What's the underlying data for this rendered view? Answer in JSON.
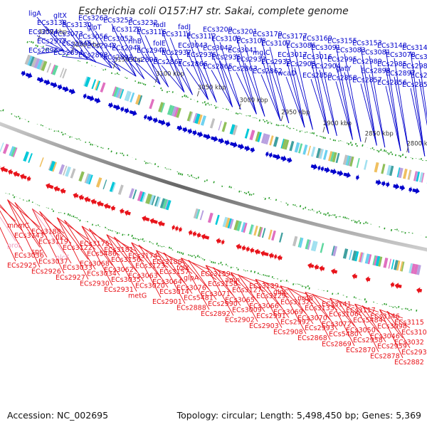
{
  "header": {
    "title": "Escherichia coli O157:H7 str. Sakai, complete genome"
  },
  "footer": {
    "accession": "Accession: NC_002695",
    "summary": "Topology: circular; Length: 5,498,450 bp; Genes: 5,369"
  },
  "colors": {
    "forward": "#0000cc",
    "reverse": "#e8141b",
    "highlight": "#f0a0c0",
    "backbone": "#6e6e6e",
    "gc_tick": "#2a9d2a"
  },
  "scale_ticks": [
    "3250 kbp",
    "3200 kbp",
    "3150 kbp",
    "3100 kbp",
    "3050 kbp",
    "3000 kbp",
    "2950 kbp",
    "2900 kbp",
    "2850 kbp",
    "2800 kbp"
  ],
  "forward_labels": [
    "ligA",
    "gltX",
    "ECs3263",
    "ECs3253",
    "ECs3232",
    "fadI",
    "fadJ",
    "ECs3209",
    "ECs3201",
    "ECs3179",
    "ECs3177",
    "ECs3169",
    "ECs3155",
    "ECs3153",
    "ECs3148",
    "ECs3147",
    "ECs3138",
    "ECs3130",
    "glpT",
    "ECs3120",
    "ECs3116",
    "ECs3114",
    "ECs3112",
    "ECs3109",
    "ECs3108",
    "ECs3107",
    "ECs3086",
    "ECs3091",
    "ECs3083",
    "ECs3081",
    "ECs3078",
    "ECs3075",
    "ECs3074",
    "ECs3073",
    "ECs3056",
    "ECs3053",
    "rihB",
    "folE",
    "ECs3043",
    "ECs3042",
    "ECs3041",
    "mglC",
    "ECs3017",
    "ECs3016",
    "ECs2995",
    "ECs2989",
    "ECs2985",
    "ECs2982",
    "ECs2977",
    "ECs2945",
    "ECs2942",
    "ECs2941",
    "ECs2940",
    "ECs2937",
    "ECs2936",
    "ECs2935",
    "ECs2933",
    "ECs2932",
    "ECs2905",
    "ECs2904",
    "gatY",
    "ECs2898",
    "ECs2897",
    "ECs2896",
    "ECs2895",
    "ECs2894",
    "ECs2893",
    "ECs2891",
    "ECs2890",
    "ECs2867",
    "ECs2866",
    "ECs2865",
    "ECs2863",
    "ECs2862",
    "wcaD",
    "ECs2859",
    "ECs2858",
    "ECs2857",
    "ECs2856",
    "ECs2855"
  ],
  "reverse_labels": [
    "mnmC",
    "ECs3188",
    "flk",
    "ECs3175",
    "ECs3181",
    "ECs3174",
    "ECs3180",
    "folX",
    "ECs3159",
    "amn",
    "ECs3139",
    "glpC",
    "nrdB",
    "ECs3141",
    "ECs3117",
    "ECs3146",
    "ECs3115",
    "ECs3143",
    "ECs3119",
    "ECs3122",
    "ECs5486",
    "ECs3156",
    "ECs3123",
    "ECs3157",
    "glpA",
    "ECs3158",
    "ECs3127",
    "ECs3129",
    "ECs3132",
    "ECs3133",
    "ECs3106",
    "ECs5484",
    "ECs3098",
    "ECs3105",
    "proL",
    "spr",
    "nlcF",
    "ECs3068",
    "ECs3062",
    "ECs3063",
    "ECs3064",
    "ECs3076",
    "ECs3071",
    "ECs3065",
    "ECs3066",
    "ECs3069",
    "ECs3070",
    "ECs3072",
    "ECs3050",
    "ECs3046",
    "ECs3032",
    "ECs3036",
    "ECs3037",
    "ECs3033",
    "ECs3034",
    "ECs3035",
    "ECs3020",
    "ECs3014",
    "ECs5481",
    "ECs2990",
    "ECs3009",
    "ECs2991",
    "ECs2992",
    "ECs2993",
    "ECs5480",
    "ECs2958",
    "ECs2959",
    "ECs2939",
    "ECs2925",
    "ECs2926",
    "ECs2927",
    "ECs2930",
    "ECs2931",
    "metG",
    "ECs2901",
    "ECs2888",
    "ECs2892",
    "ECs2902",
    "ECs2903",
    "ECs2908",
    "ECs2868",
    "ECs2869",
    "ECs2870",
    "ECs2878",
    "ECs2882"
  ]
}
